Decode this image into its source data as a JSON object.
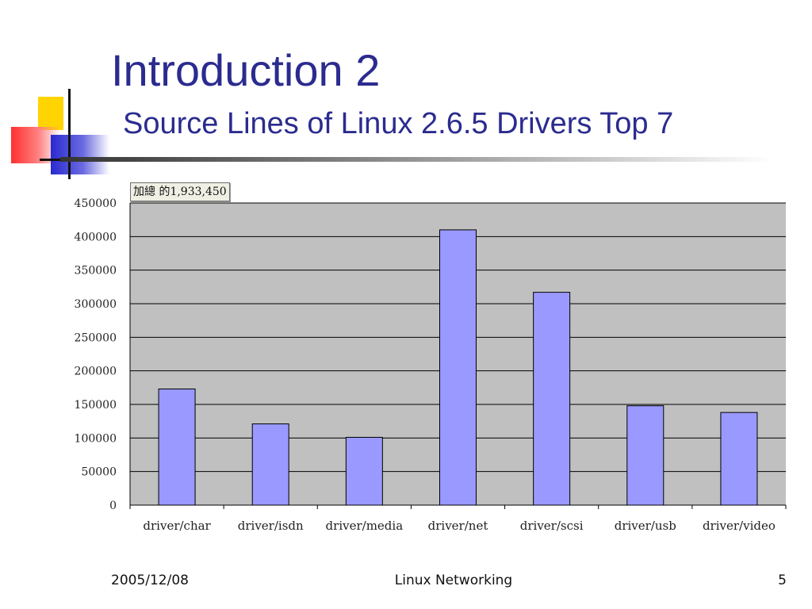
{
  "slide": {
    "title": "Introduction 2",
    "subtitle": "Source Lines of Linux 2.6.5 Drivers Top 7",
    "tooltip": "加總 的1,933,450",
    "footer": {
      "date": "2005/12/08",
      "center": "Linux Networking",
      "page": "5"
    }
  },
  "colors": {
    "title": "#2b2b8f",
    "bar": "#9999ff",
    "plot_background": "#c0c0c0"
  },
  "chart_data": {
    "type": "bar",
    "title": "",
    "xlabel": "",
    "ylabel": "",
    "categories": [
      "driver/char",
      "driver/isdn",
      "driver/media",
      "driver/net",
      "driver/scsi",
      "driver/usb",
      "driver/video"
    ],
    "values": [
      173000,
      121000,
      101000,
      410000,
      317000,
      148000,
      138000
    ],
    "ylim": [
      0,
      450000
    ],
    "yticks": [
      "0",
      "50000",
      "100000",
      "150000",
      "200000",
      "250000",
      "300000",
      "350000",
      "400000",
      "450000"
    ],
    "grid": true,
    "legend": "none"
  }
}
